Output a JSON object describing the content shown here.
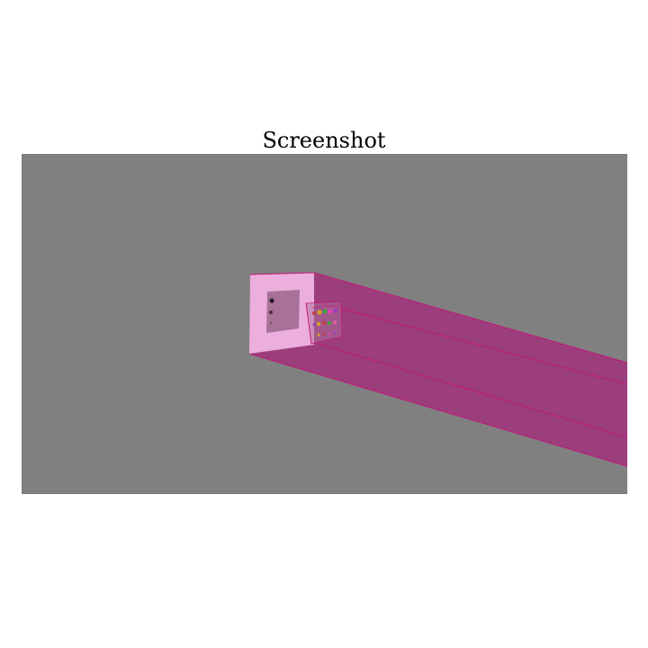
{
  "title": "Screenshot",
  "scene": {
    "background_color": "#808080",
    "beam_side_color": "#9c3e7c",
    "beam_front_color": "#ecaedc",
    "beam_edge_color": "#c0187a",
    "inner_window_color": "#a87298",
    "dot_colors": [
      "#e040b0",
      "#d8a020",
      "#40a040",
      "#c04040",
      "#a040c0",
      "#e060a0"
    ]
  }
}
